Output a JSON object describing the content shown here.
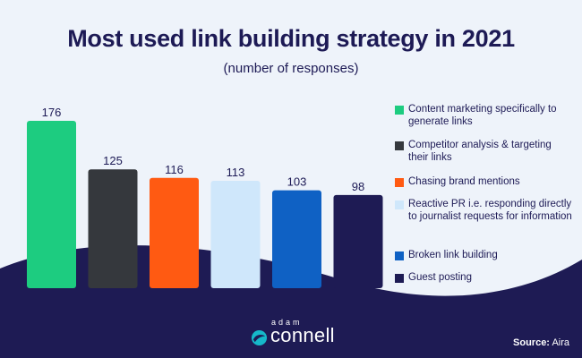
{
  "title": "Most used link building strategy in 2021",
  "subtitle": "(number of responses)",
  "chart_data": {
    "type": "bar",
    "title": "Most used link building strategy in 2021",
    "subtitle": "(number of responses)",
    "categories": [
      "Content marketing specifically to generate links",
      "Competitor analysis & targeting their links",
      "Chasing brand mentions",
      "Reactive PR i.e. responding directly to journalist requests for information",
      "Broken link building",
      "Guest posting"
    ],
    "values": [
      176,
      125,
      116,
      113,
      103,
      98
    ],
    "colors": [
      "#1dcc80",
      "#35383d",
      "#ff5a12",
      "#cfe7fb",
      "#0f61c4",
      "#1e1b54"
    ],
    "ylim": [
      0,
      176
    ],
    "grid": false,
    "legend_position": "right"
  },
  "legend": [
    {
      "label": "Content marketing specifically to generate links",
      "color": "#1dcc80"
    },
    {
      "label": "Competitor analysis & targeting their links",
      "color": "#35383d"
    },
    {
      "label": "Chasing brand mentions",
      "color": "#ff5a12"
    },
    {
      "label": "Reactive PR i.e. responding directly to journalist requests for information",
      "color": "#cfe7fb"
    },
    {
      "label": "Broken link building",
      "color": "#0f61c4"
    },
    {
      "label": "Guest posting",
      "color": "#1e1b54"
    }
  ],
  "logo": {
    "top": "adam",
    "bottom": "connell"
  },
  "source": {
    "label": "Source:",
    "value": "Aira"
  },
  "colors": {
    "background": "#eef3fa",
    "wave": "#1e1b54",
    "text": "#1d1a55"
  }
}
